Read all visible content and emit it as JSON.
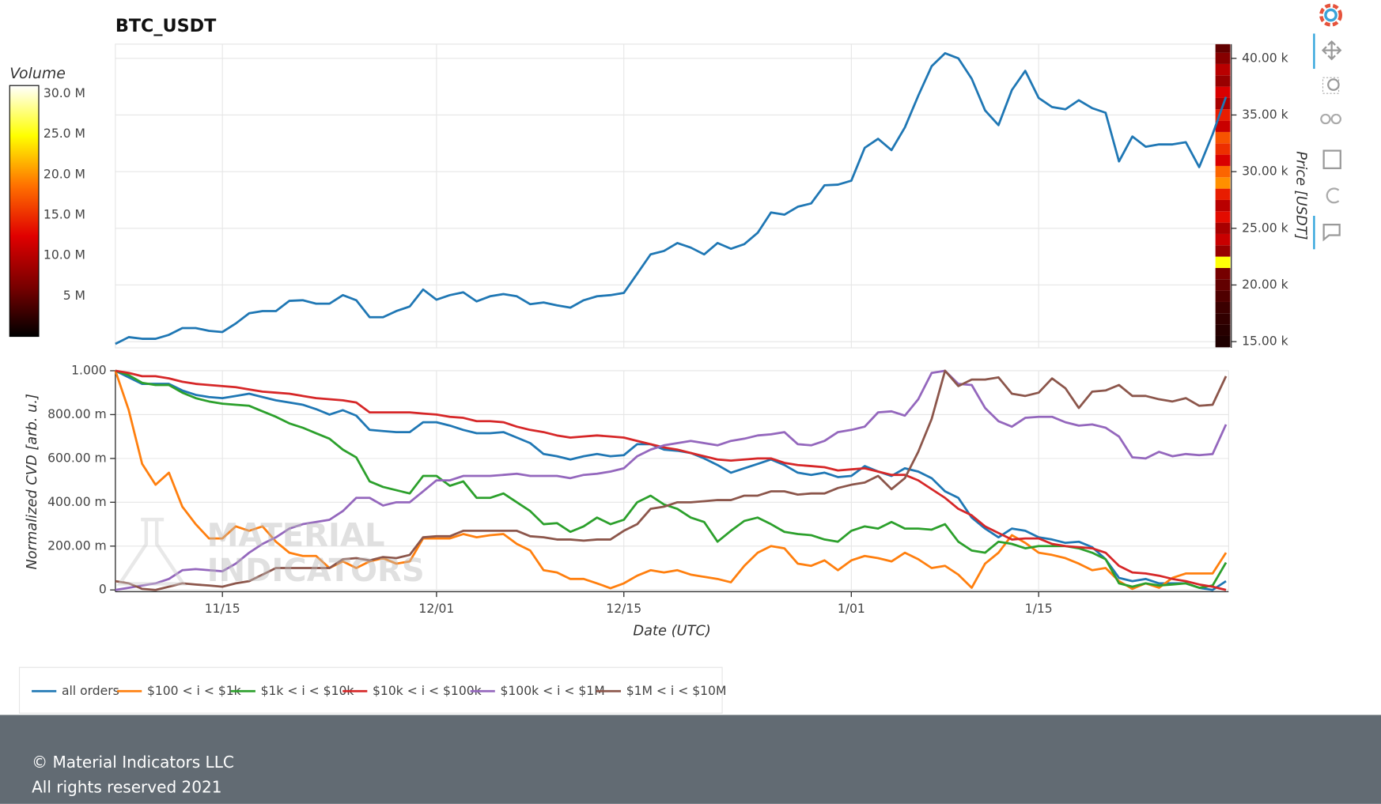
{
  "chart_data": [
    {
      "type": "line",
      "title": "BTC_USDT",
      "y_label": "Price [USDT]",
      "x": [
        "11/07",
        "11/08",
        "11/09",
        "11/10",
        "11/11",
        "11/12",
        "11/13",
        "11/14",
        "11/15",
        "11/16",
        "11/17",
        "11/18",
        "11/19",
        "11/20",
        "11/21",
        "11/22",
        "11/23",
        "11/24",
        "11/25",
        "11/26",
        "11/27",
        "11/28",
        "11/29",
        "11/30",
        "12/01",
        "12/02",
        "12/03",
        "12/04",
        "12/05",
        "12/06",
        "12/07",
        "12/08",
        "12/09",
        "12/10",
        "12/11",
        "12/12",
        "12/13",
        "12/14",
        "12/15",
        "12/16",
        "12/17",
        "12/18",
        "12/19",
        "12/20",
        "12/21",
        "12/22",
        "12/23",
        "12/24",
        "12/25",
        "12/26",
        "12/27",
        "12/28",
        "12/29",
        "12/30",
        "12/31",
        "1/01",
        "1/02",
        "1/03",
        "1/04",
        "1/05",
        "1/06",
        "1/07",
        "1/08",
        "1/09",
        "1/10",
        "1/11",
        "1/12",
        "1/13",
        "1/14",
        "1/15",
        "1/16",
        "1/17",
        "1/18",
        "1/19",
        "1/20",
        "1/21",
        "1/22",
        "1/23",
        "1/24",
        "1/25",
        "1/26",
        "1/27",
        "1/28",
        "1/29"
      ],
      "xticks": [
        "11/15",
        "12/01",
        "12/15",
        "1/01",
        "1/15"
      ],
      "series": [
        {
          "name": "price",
          "color": "#1f77b4",
          "values": [
            14800,
            15400,
            15250,
            15250,
            15600,
            16200,
            16200,
            15950,
            15850,
            16600,
            17500,
            17700,
            17700,
            18600,
            18650,
            18350,
            18350,
            19100,
            18650,
            17150,
            17150,
            17700,
            18100,
            19600,
            18700,
            19100,
            19350,
            18550,
            19000,
            19200,
            19000,
            18300,
            18450,
            18200,
            18000,
            18650,
            19000,
            19100,
            19300,
            21000,
            22700,
            23000,
            23700,
            23300,
            22700,
            23700,
            23200,
            23600,
            24600,
            26400,
            26200,
            26900,
            27200,
            28800,
            28850,
            29200,
            32100,
            32900,
            31900,
            33900,
            36700,
            39300,
            40450,
            40000,
            38200,
            35400,
            34100,
            37200,
            38900,
            36500,
            35700,
            35500,
            36300,
            35600,
            35200,
            30900,
            33100,
            32200,
            32400,
            32400,
            32600,
            30400,
            33300,
            36600
          ]
        }
      ],
      "ylim": [
        14450,
        41250
      ],
      "yticks": [
        {
          "value": 15000,
          "label": "15.00 k"
        },
        {
          "value": 20000,
          "label": "20.00 k"
        },
        {
          "value": 25000,
          "label": "25.00 k"
        },
        {
          "value": 30000,
          "label": "30.00 k"
        },
        {
          "value": 35000,
          "label": "35.00 k"
        },
        {
          "value": 40000,
          "label": "40.00 k"
        }
      ],
      "y_axis_side": "right",
      "grid": true,
      "heatmap": {
        "bins": [
          14500,
          15500,
          16500,
          17500,
          18500,
          19500,
          20500,
          21500,
          22500,
          23500,
          24500,
          25500,
          26500,
          27500,
          28500,
          29500,
          30500,
          31500,
          32500,
          33500,
          34500,
          35500,
          36500,
          37500,
          38500,
          39500,
          40500,
          41500
        ],
        "values": [
          1500000,
          2000000,
          2500000,
          3000000,
          4000000,
          5000000,
          6000000,
          25000000,
          8000000,
          11000000,
          9000000,
          13000000,
          10000000,
          14000000,
          20000000,
          18000000,
          12000000,
          15000000,
          17000000,
          11000000,
          14000000,
          9000000,
          12000000,
          8000000,
          10000000,
          7000000,
          5000000
        ],
        "colormap": [
          "#000000",
          "#7a0000",
          "#e00000",
          "#ff7000",
          "#ffff00",
          "#ffffff"
        ],
        "clim": [
          0,
          31000000
        ],
        "colorbar_title": "Volume",
        "colorbar_ticks": [
          {
            "value": 5000000,
            "label": "5 M"
          },
          {
            "value": 10000000,
            "label": "10.0 M"
          },
          {
            "value": 15000000,
            "label": "15.0 M"
          },
          {
            "value": 20000000,
            "label": "20.0 M"
          },
          {
            "value": 25000000,
            "label": "25.0 M"
          },
          {
            "value": 30000000,
            "label": "30.0 M"
          }
        ]
      }
    },
    {
      "type": "line",
      "x_label": "Date (UTC)",
      "y_label": "Normalized CVD [arb. u.]",
      "watermark": [
        "MATERIAL",
        "INDICATORS"
      ],
      "x": [
        "11/07",
        "11/08",
        "11/09",
        "11/10",
        "11/11",
        "11/12",
        "11/13",
        "11/14",
        "11/15",
        "11/16",
        "11/17",
        "11/18",
        "11/19",
        "11/20",
        "11/21",
        "11/22",
        "11/23",
        "11/24",
        "11/25",
        "11/26",
        "11/27",
        "11/28",
        "11/29",
        "11/30",
        "12/01",
        "12/02",
        "12/03",
        "12/04",
        "12/05",
        "12/06",
        "12/07",
        "12/08",
        "12/09",
        "12/10",
        "12/11",
        "12/12",
        "12/13",
        "12/14",
        "12/15",
        "12/16",
        "12/17",
        "12/18",
        "12/19",
        "12/20",
        "12/21",
        "12/22",
        "12/23",
        "12/24",
        "12/25",
        "12/26",
        "12/27",
        "12/28",
        "12/29",
        "12/30",
        "12/31",
        "1/01",
        "1/02",
        "1/03",
        "1/04",
        "1/05",
        "1/06",
        "1/07",
        "1/08",
        "1/09",
        "1/10",
        "1/11",
        "1/12",
        "1/13",
        "1/14",
        "1/15",
        "1/16",
        "1/17",
        "1/18",
        "1/19",
        "1/20",
        "1/21",
        "1/22",
        "1/23",
        "1/24",
        "1/25",
        "1/26",
        "1/27",
        "1/28",
        "1/29"
      ],
      "xticks": [
        "11/15",
        "12/01",
        "12/15",
        "1/01",
        "1/15"
      ],
      "ylim": [
        0,
        1
      ],
      "yticks": [
        0,
        {
          "value": 0.2,
          "label": "200.00 m"
        },
        {
          "value": 0.4,
          "label": "400.00 m"
        },
        {
          "value": 0.6,
          "label": "600.00 m"
        },
        {
          "value": 0.8,
          "label": "800.00 m"
        },
        {
          "value": 1,
          "label": "1.000"
        }
      ],
      "grid": true,
      "legend": "bottom",
      "series": [
        {
          "name": "all orders",
          "color": "#1f77b4",
          "values": [
            1.0,
            0.97,
            0.94,
            0.94,
            0.94,
            0.91,
            0.89,
            0.88,
            0.875,
            0.885,
            0.895,
            0.88,
            0.865,
            0.855,
            0.845,
            0.825,
            0.8,
            0.82,
            0.795,
            0.73,
            0.725,
            0.72,
            0.72,
            0.765,
            0.765,
            0.75,
            0.73,
            0.715,
            0.715,
            0.72,
            0.695,
            0.67,
            0.62,
            0.61,
            0.595,
            0.61,
            0.62,
            0.61,
            0.615,
            0.665,
            0.665,
            0.64,
            0.635,
            0.625,
            0.6,
            0.57,
            0.535,
            0.555,
            0.575,
            0.595,
            0.57,
            0.535,
            0.525,
            0.535,
            0.515,
            0.52,
            0.565,
            0.54,
            0.52,
            0.555,
            0.54,
            0.51,
            0.45,
            0.42,
            0.33,
            0.28,
            0.24,
            0.28,
            0.27,
            0.24,
            0.23,
            0.215,
            0.22,
            0.195,
            0.14,
            0.055,
            0.04,
            0.05,
            0.03,
            0.03,
            0.03,
            0.01,
            0.0,
            0.04
          ]
        },
        {
          "name": "$100 < i < $1k",
          "color": "#ff7f0e",
          "values": [
            1.0,
            0.82,
            0.575,
            0.48,
            0.535,
            0.38,
            0.3,
            0.235,
            0.235,
            0.29,
            0.27,
            0.29,
            0.22,
            0.17,
            0.155,
            0.155,
            0.1,
            0.13,
            0.1,
            0.13,
            0.145,
            0.12,
            0.13,
            0.235,
            0.235,
            0.235,
            0.255,
            0.24,
            0.25,
            0.255,
            0.21,
            0.18,
            0.09,
            0.08,
            0.05,
            0.05,
            0.03,
            0.008,
            0.03,
            0.065,
            0.09,
            0.08,
            0.09,
            0.07,
            0.06,
            0.05,
            0.035,
            0.11,
            0.17,
            0.2,
            0.19,
            0.12,
            0.11,
            0.135,
            0.09,
            0.135,
            0.155,
            0.145,
            0.13,
            0.17,
            0.14,
            0.1,
            0.11,
            0.07,
            0.01,
            0.12,
            0.17,
            0.25,
            0.215,
            0.17,
            0.16,
            0.145,
            0.12,
            0.09,
            0.1,
            0.04,
            0.005,
            0.03,
            0.01,
            0.055,
            0.075,
            0.075,
            0.075,
            0.17
          ]
        },
        {
          "name": "$1k < i < $10k",
          "color": "#2ca02c",
          "values": [
            1.0,
            0.98,
            0.945,
            0.935,
            0.935,
            0.9,
            0.875,
            0.86,
            0.85,
            0.845,
            0.84,
            0.815,
            0.79,
            0.76,
            0.74,
            0.715,
            0.69,
            0.64,
            0.605,
            0.495,
            0.47,
            0.455,
            0.44,
            0.52,
            0.52,
            0.475,
            0.495,
            0.42,
            0.42,
            0.44,
            0.4,
            0.36,
            0.3,
            0.305,
            0.265,
            0.29,
            0.33,
            0.3,
            0.32,
            0.4,
            0.43,
            0.39,
            0.37,
            0.33,
            0.31,
            0.22,
            0.27,
            0.315,
            0.33,
            0.3,
            0.265,
            0.255,
            0.25,
            0.23,
            0.22,
            0.27,
            0.29,
            0.28,
            0.31,
            0.28,
            0.28,
            0.275,
            0.3,
            0.22,
            0.18,
            0.17,
            0.22,
            0.21,
            0.19,
            0.2,
            0.2,
            0.2,
            0.19,
            0.17,
            0.14,
            0.03,
            0.015,
            0.03,
            0.02,
            0.025,
            0.03,
            0.01,
            0.02,
            0.125
          ]
        },
        {
          "name": "$10k < i < $100k",
          "color": "#d62728",
          "values": [
            1.0,
            0.99,
            0.975,
            0.975,
            0.965,
            0.95,
            0.94,
            0.935,
            0.93,
            0.925,
            0.915,
            0.905,
            0.9,
            0.895,
            0.885,
            0.875,
            0.87,
            0.865,
            0.855,
            0.81,
            0.81,
            0.81,
            0.81,
            0.805,
            0.8,
            0.79,
            0.785,
            0.77,
            0.77,
            0.765,
            0.745,
            0.73,
            0.72,
            0.705,
            0.695,
            0.7,
            0.705,
            0.7,
            0.695,
            0.68,
            0.665,
            0.65,
            0.64,
            0.625,
            0.61,
            0.595,
            0.59,
            0.595,
            0.6,
            0.6,
            0.58,
            0.57,
            0.565,
            0.56,
            0.545,
            0.55,
            0.555,
            0.54,
            0.525,
            0.525,
            0.5,
            0.46,
            0.42,
            0.37,
            0.34,
            0.29,
            0.26,
            0.23,
            0.235,
            0.235,
            0.21,
            0.2,
            0.195,
            0.19,
            0.17,
            0.11,
            0.08,
            0.075,
            0.065,
            0.05,
            0.04,
            0.025,
            0.015,
            0.0
          ]
        },
        {
          "name": "$100k < i < $1M",
          "color": "#9467bd",
          "values": [
            0.0,
            0.01,
            0.02,
            0.03,
            0.05,
            0.09,
            0.095,
            0.09,
            0.085,
            0.12,
            0.17,
            0.21,
            0.24,
            0.28,
            0.3,
            0.31,
            0.32,
            0.36,
            0.42,
            0.42,
            0.385,
            0.4,
            0.4,
            0.45,
            0.5,
            0.5,
            0.52,
            0.52,
            0.52,
            0.525,
            0.53,
            0.52,
            0.52,
            0.52,
            0.51,
            0.525,
            0.53,
            0.54,
            0.555,
            0.61,
            0.64,
            0.66,
            0.67,
            0.68,
            0.67,
            0.66,
            0.68,
            0.69,
            0.705,
            0.71,
            0.72,
            0.665,
            0.66,
            0.68,
            0.72,
            0.73,
            0.745,
            0.81,
            0.815,
            0.795,
            0.87,
            0.99,
            1.0,
            0.94,
            0.935,
            0.83,
            0.77,
            0.745,
            0.785,
            0.79,
            0.79,
            0.765,
            0.75,
            0.755,
            0.74,
            0.7,
            0.605,
            0.6,
            0.63,
            0.61,
            0.62,
            0.615,
            0.62,
            0.755
          ]
        },
        {
          "name": "$1M < i < $10M",
          "color": "#8c564b",
          "values": [
            0.04,
            0.03,
            0.005,
            0.0,
            0.015,
            0.03,
            0.025,
            0.02,
            0.015,
            0.03,
            0.04,
            0.07,
            0.1,
            0.1,
            0.1,
            0.1,
            0.1,
            0.14,
            0.145,
            0.135,
            0.15,
            0.145,
            0.16,
            0.24,
            0.245,
            0.245,
            0.27,
            0.27,
            0.27,
            0.27,
            0.27,
            0.245,
            0.24,
            0.23,
            0.23,
            0.225,
            0.23,
            0.23,
            0.27,
            0.3,
            0.37,
            0.38,
            0.4,
            0.4,
            0.405,
            0.41,
            0.41,
            0.43,
            0.43,
            0.45,
            0.45,
            0.435,
            0.44,
            0.44,
            0.465,
            0.48,
            0.49,
            0.52,
            0.46,
            0.51,
            0.63,
            0.78,
            1.0,
            0.93,
            0.96,
            0.96,
            0.97,
            0.895,
            0.885,
            0.9,
            0.965,
            0.92,
            0.83,
            0.905,
            0.91,
            0.935,
            0.885,
            0.885,
            0.87,
            0.86,
            0.875,
            0.84,
            0.845,
            0.975
          ]
        }
      ]
    }
  ],
  "footer": [
    "© Material Indicators LLC",
    "All rights reserved 2021"
  ]
}
